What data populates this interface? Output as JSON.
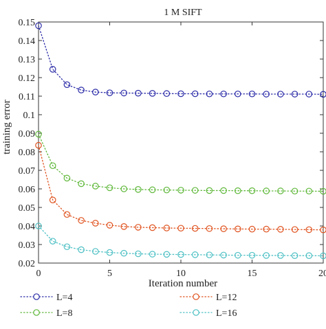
{
  "chart_data": {
    "type": "line",
    "title": "1 M SIFT",
    "xlabel": "Iteration number",
    "ylabel": "training error",
    "xlim": [
      0,
      20
    ],
    "ylim": [
      0.02,
      0.15
    ],
    "xticks": [
      0,
      5,
      10,
      15,
      20
    ],
    "yticks": [
      0.02,
      0.03,
      0.04,
      0.05,
      0.06,
      0.07,
      0.08,
      0.09,
      0.1,
      0.11,
      0.12,
      0.13,
      0.14,
      0.15
    ],
    "yticklabels": [
      "0.02",
      "0.03",
      "0.04",
      "0.05",
      "0.06",
      "0.07",
      "0.08",
      "0.09",
      "0.1",
      "0.11",
      "0.12",
      "0.13",
      "0.14",
      "0.15"
    ],
    "grid": false,
    "legend_position": "below",
    "x": [
      0,
      1,
      2,
      3,
      4,
      5,
      6,
      7,
      8,
      9,
      10,
      11,
      12,
      13,
      14,
      15,
      16,
      17,
      18,
      19,
      20
    ],
    "series": [
      {
        "name": "L=4",
        "color": "#2a2aa8",
        "values": [
          0.148,
          0.1245,
          0.1162,
          0.1133,
          0.1122,
          0.1118,
          0.1117,
          0.1116,
          0.1115,
          0.1114,
          0.1113,
          0.1113,
          0.1112,
          0.1112,
          0.1112,
          0.1112,
          0.1111,
          0.1111,
          0.1111,
          0.1111,
          0.111
        ]
      },
      {
        "name": "L=8",
        "color": "#5fb83a",
        "values": [
          0.0895,
          0.0725,
          0.0658,
          0.0628,
          0.0615,
          0.0606,
          0.06,
          0.0597,
          0.0595,
          0.0594,
          0.0593,
          0.0592,
          0.0591,
          0.0591,
          0.059,
          0.059,
          0.0589,
          0.0589,
          0.0588,
          0.0588,
          0.0587
        ]
      },
      {
        "name": "L=12",
        "color": "#e0531f",
        "values": [
          0.0835,
          0.054,
          0.0462,
          0.043,
          0.0415,
          0.0404,
          0.0397,
          0.0393,
          0.0391,
          0.0389,
          0.0388,
          0.0387,
          0.0386,
          0.0385,
          0.0384,
          0.0383,
          0.0383,
          0.0382,
          0.0381,
          0.038,
          0.0379
        ]
      },
      {
        "name": "L=16",
        "color": "#4ec0c4",
        "values": [
          0.04,
          0.0318,
          0.0288,
          0.0272,
          0.0263,
          0.0257,
          0.0253,
          0.025,
          0.0248,
          0.0247,
          0.0246,
          0.0245,
          0.0244,
          0.0243,
          0.0242,
          0.0242,
          0.0241,
          0.0241,
          0.024,
          0.024,
          0.0239
        ]
      }
    ]
  }
}
